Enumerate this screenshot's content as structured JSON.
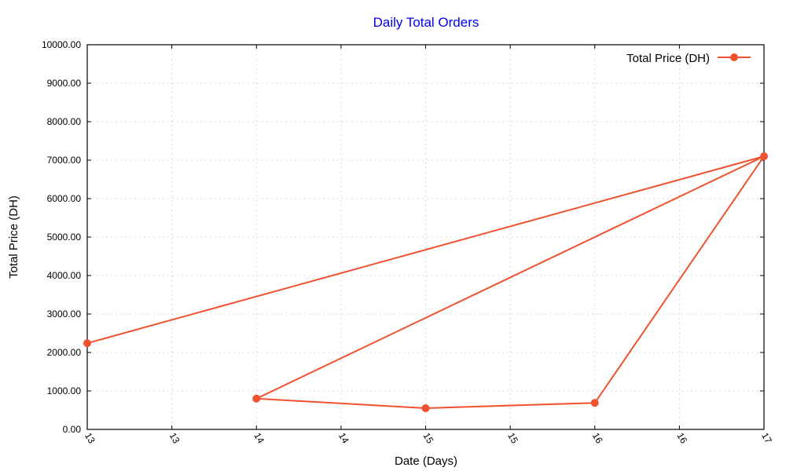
{
  "chart_data": {
    "type": "line",
    "title": "Daily Total Orders",
    "xlabel": "Date (Days)",
    "ylabel": "Total Price (DH)",
    "ylim": [
      0,
      10000
    ],
    "xlim": [
      13,
      17
    ],
    "y_ticks": [
      "0.00",
      "1000.00",
      "2000.00",
      "3000.00",
      "4000.00",
      "5000.00",
      "6000.00",
      "7000.00",
      "8000.00",
      "9000.00",
      "10000.00"
    ],
    "y_tick_values": [
      0,
      1000,
      2000,
      3000,
      4000,
      5000,
      6000,
      7000,
      8000,
      9000,
      10000
    ],
    "x_tick_labels": [
      "13",
      "13",
      "14",
      "14",
      "15",
      "15",
      "16",
      "16",
      "17"
    ],
    "x_tick_values": [
      13,
      13.5,
      14,
      14.5,
      15,
      15.5,
      16,
      16.5,
      17
    ],
    "grid": true,
    "legend_position": "top-right",
    "series": [
      {
        "name": "Total Price (DH)",
        "color": "#f0522f",
        "points": [
          {
            "x": 13,
            "y": 2240
          },
          {
            "x": 17,
            "y": 7100
          },
          {
            "x": 14,
            "y": 800
          },
          {
            "x": 15,
            "y": 550
          },
          {
            "x": 16,
            "y": 690
          },
          {
            "x": 17,
            "y": 7100
          }
        ],
        "markers": [
          {
            "x": 13,
            "y": 2240
          },
          {
            "x": 14,
            "y": 800
          },
          {
            "x": 15,
            "y": 550
          },
          {
            "x": 16,
            "y": 690
          },
          {
            "x": 17,
            "y": 7100
          }
        ]
      }
    ],
    "title_color": "#0000ee"
  }
}
